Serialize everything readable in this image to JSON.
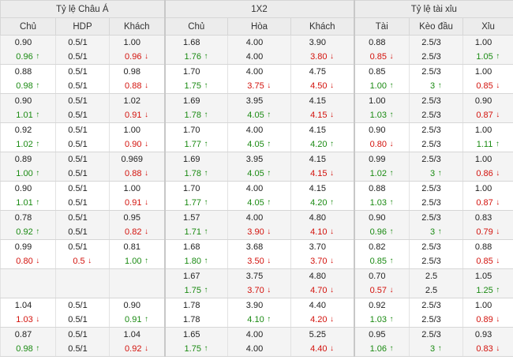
{
  "headers": {
    "group": [
      "Tỷ lệ Châu Á",
      "1X2",
      "Tỷ lệ tài xỉu"
    ],
    "columns": [
      "Chủ",
      "HDP",
      "Khách",
      "Chủ",
      "Hòa",
      "Khách",
      "Tài",
      "Kèo đầu",
      "Xỉu"
    ]
  },
  "rows": [
    [
      [
        "0.90",
        "0.96",
        "up"
      ],
      [
        "0.5/1",
        "0.5/1",
        ""
      ],
      [
        "1.00",
        "0.96",
        "down"
      ],
      [
        "1.68",
        "1.76",
        "up"
      ],
      [
        "4.00",
        "4.00",
        ""
      ],
      [
        "3.90",
        "3.80",
        "down"
      ],
      [
        "0.88",
        "0.85",
        "down"
      ],
      [
        "2.5/3",
        "2.5/3",
        ""
      ],
      [
        "1.00",
        "1.05",
        "up"
      ]
    ],
    [
      [
        "0.88",
        "0.98",
        "up"
      ],
      [
        "0.5/1",
        "0.5/1",
        ""
      ],
      [
        "0.98",
        "0.88",
        "down"
      ],
      [
        "1.70",
        "1.75",
        "up"
      ],
      [
        "4.00",
        "3.75",
        "down"
      ],
      [
        "4.75",
        "4.50",
        "down"
      ],
      [
        "0.85",
        "1.00",
        "up"
      ],
      [
        "2.5/3",
        "3",
        "up"
      ],
      [
        "1.00",
        "0.85",
        "down"
      ]
    ],
    [
      [
        "0.90",
        "1.01",
        "up"
      ],
      [
        "0.5/1",
        "0.5/1",
        ""
      ],
      [
        "1.02",
        "0.91",
        "down"
      ],
      [
        "1.69",
        "1.78",
        "up"
      ],
      [
        "3.95",
        "4.05",
        "up"
      ],
      [
        "4.15",
        "4.15",
        "down"
      ],
      [
        "1.00",
        "1.03",
        "up"
      ],
      [
        "2.5/3",
        "2.5/3",
        ""
      ],
      [
        "0.90",
        "0.87",
        "down"
      ]
    ],
    [
      [
        "0.92",
        "1.02",
        "up"
      ],
      [
        "0.5/1",
        "0.5/1",
        ""
      ],
      [
        "1.00",
        "0.90",
        "down"
      ],
      [
        "1.70",
        "1.77",
        "up"
      ],
      [
        "4.00",
        "4.05",
        "up"
      ],
      [
        "4.15",
        "4.20",
        "up"
      ],
      [
        "0.90",
        "0.80",
        "down"
      ],
      [
        "2.5/3",
        "2.5/3",
        ""
      ],
      [
        "1.00",
        "1.11",
        "up"
      ]
    ],
    [
      [
        "0.89",
        "1.00",
        "up"
      ],
      [
        "0.5/1",
        "0.5/1",
        ""
      ],
      [
        "0.969",
        "0.88",
        "down"
      ],
      [
        "1.69",
        "1.78",
        "up"
      ],
      [
        "3.95",
        "4.05",
        "up"
      ],
      [
        "4.15",
        "4.15",
        "down"
      ],
      [
        "0.99",
        "1.02",
        "up"
      ],
      [
        "2.5/3",
        "3",
        "up"
      ],
      [
        "1.00",
        "0.86",
        "down"
      ]
    ],
    [
      [
        "0.90",
        "1.01",
        "up"
      ],
      [
        "0.5/1",
        "0.5/1",
        ""
      ],
      [
        "1.00",
        "0.91",
        "down"
      ],
      [
        "1.70",
        "1.77",
        "up"
      ],
      [
        "4.00",
        "4.05",
        "up"
      ],
      [
        "4.15",
        "4.20",
        "up"
      ],
      [
        "0.88",
        "1.03",
        "up"
      ],
      [
        "2.5/3",
        "2.5/3",
        ""
      ],
      [
        "1.00",
        "0.87",
        "down"
      ]
    ],
    [
      [
        "0.78",
        "0.92",
        "up"
      ],
      [
        "0.5/1",
        "0.5/1",
        ""
      ],
      [
        "0.95",
        "0.82",
        "down"
      ],
      [
        "1.57",
        "1.71",
        "up"
      ],
      [
        "4.00",
        "3.90",
        "down"
      ],
      [
        "4.80",
        "4.10",
        "down"
      ],
      [
        "0.90",
        "0.96",
        "up"
      ],
      [
        "2.5/3",
        "3",
        "up"
      ],
      [
        "0.83",
        "0.79",
        "down"
      ]
    ],
    [
      [
        "0.99",
        "0.80",
        "down"
      ],
      [
        "0.5/1",
        "0.5",
        "down"
      ],
      [
        "0.81",
        "1.00",
        "up"
      ],
      [
        "1.68",
        "1.80",
        "up"
      ],
      [
        "3.68",
        "3.50",
        "down"
      ],
      [
        "3.70",
        "3.70",
        "down"
      ],
      [
        "0.82",
        "0.85",
        "up"
      ],
      [
        "2.5/3",
        "2.5/3",
        ""
      ],
      [
        "0.88",
        "0.85",
        "down"
      ]
    ],
    [
      [
        "",
        "",
        ""
      ],
      [
        "",
        "",
        ""
      ],
      [
        "",
        "",
        ""
      ],
      [
        "1.67",
        "1.75",
        "up"
      ],
      [
        "3.75",
        "3.70",
        "down"
      ],
      [
        "4.80",
        "4.70",
        "down"
      ],
      [
        "0.70",
        "0.57",
        "down"
      ],
      [
        "2.5",
        "2.5",
        ""
      ],
      [
        "1.05",
        "1.25",
        "up"
      ]
    ],
    [
      [
        "1.04",
        "1.03",
        "down"
      ],
      [
        "0.5/1",
        "0.5/1",
        ""
      ],
      [
        "0.90",
        "0.91",
        "up"
      ],
      [
        "1.78",
        "1.78",
        ""
      ],
      [
        "3.90",
        "4.10",
        "up"
      ],
      [
        "4.40",
        "4.20",
        "down"
      ],
      [
        "0.92",
        "1.03",
        "up"
      ],
      [
        "2.5/3",
        "2.5/3",
        ""
      ],
      [
        "1.00",
        "0.89",
        "down"
      ]
    ],
    [
      [
        "0.87",
        "0.98",
        "up"
      ],
      [
        "0.5/1",
        "0.5/1",
        ""
      ],
      [
        "1.04",
        "0.92",
        "down"
      ],
      [
        "1.65",
        "1.75",
        "up"
      ],
      [
        "4.00",
        "4.00",
        ""
      ],
      [
        "5.25",
        "4.40",
        "down"
      ],
      [
        "0.95",
        "1.06",
        "up"
      ],
      [
        "2.5/3",
        "3",
        "up"
      ],
      [
        "0.93",
        "0.83",
        "down"
      ]
    ]
  ],
  "icons": {
    "up": "arrow-up-icon",
    "down": "arrow-down-icon"
  },
  "colors": {
    "up": "#1a8a12",
    "down": "#d3120c",
    "header_bg": "#ececec",
    "alt_row": "#f4f4f4"
  }
}
